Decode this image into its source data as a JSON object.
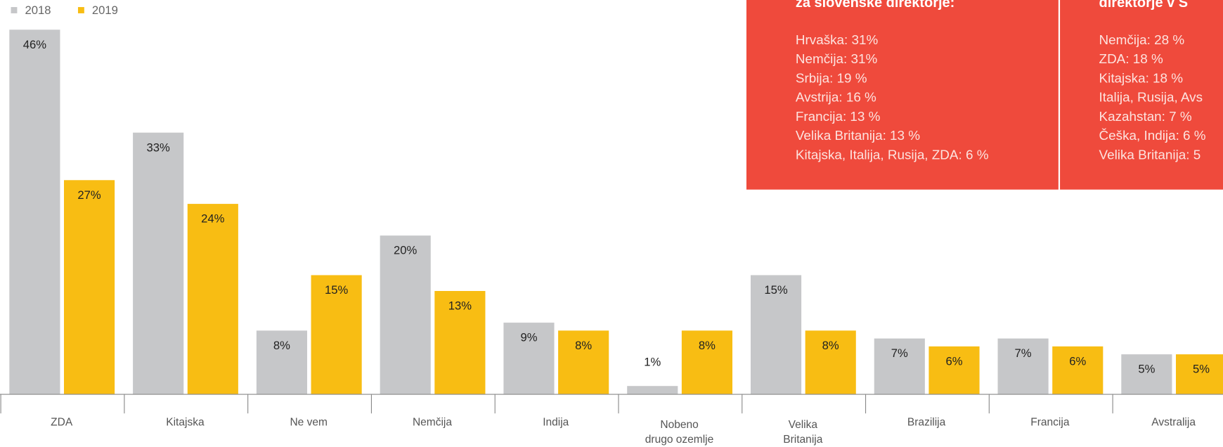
{
  "chart_data": {
    "type": "bar",
    "categories": [
      "ZDA",
      "Kitajska",
      "Ne vem",
      "Nemčija",
      "Indija",
      "Nobeno\ndrugo ozemlje",
      "Velika\nBritanija",
      "Brazilija",
      "Francija",
      "Avstralija"
    ],
    "series": [
      {
        "name": "2018",
        "color": "#c6c7c9",
        "values": [
          46,
          33,
          8,
          20,
          9,
          1,
          15,
          7,
          7,
          5
        ],
        "value_labels": [
          "46%",
          "33%",
          "8%",
          "20%",
          "9%",
          "1%",
          "15%",
          "7%",
          "7%",
          "5%"
        ]
      },
      {
        "name": "2019",
        "color": "#f8bd13",
        "values": [
          27,
          24,
          15,
          13,
          8,
          8,
          8,
          6,
          6,
          5
        ],
        "value_labels": [
          "27%",
          "24%",
          "15%",
          "13%",
          "8%",
          "8%",
          "8%",
          "6%",
          "6%",
          "5%"
        ]
      }
    ],
    "ylim": [
      0,
      46
    ]
  },
  "panels": [
    {
      "heading": "za slovenske direktorje:",
      "lines": [
        "Hrvaška: 31%",
        "Nemčija: 31%",
        "Srbija: 19 %",
        "Avstrija: 16 %",
        "Francija: 13 %",
        "Velika Britanija: 13 %",
        "Kitajska, Italija, Rusija, ZDA: 6 %"
      ]
    },
    {
      "heading": "direktorje v S",
      "lines": [
        "Nemčija: 28 %",
        "ZDA: 18 %",
        "Kitajska: 18 %",
        "Italija, Rusija, Avs",
        "Kazahstan: 7 %",
        "Češka, Indija: 6 %",
        "Velika Britanija: 5"
      ]
    }
  ]
}
